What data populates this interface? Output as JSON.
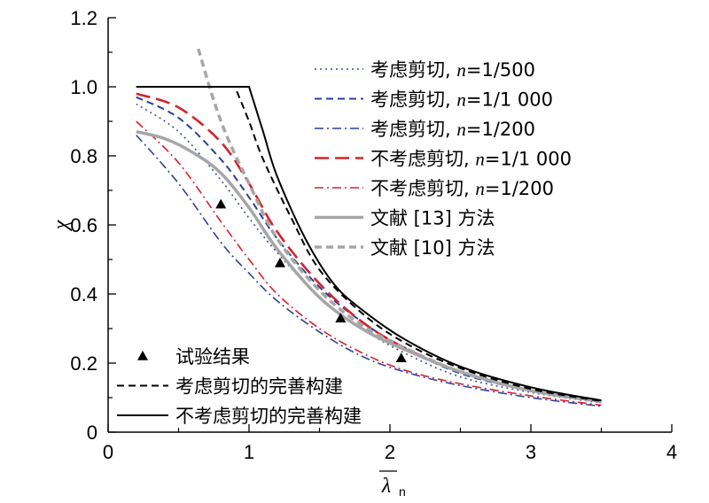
{
  "chart_data": {
    "type": "line",
    "xlabel_symbol": "λ",
    "xlabel_sub": "n",
    "ylabel": "χ",
    "xlim": [
      0,
      4
    ],
    "ylim": [
      0,
      1.2
    ],
    "xticks": [
      "0",
      "1",
      "2",
      "3",
      "4"
    ],
    "yticks": [
      "0",
      "0.2",
      "0.4",
      "0.6",
      "0.8",
      "1.0",
      "1.2"
    ],
    "grid": false,
    "legend_top_right": [
      {
        "series": "s1",
        "text": "考虑剪切, ",
        "var": "n",
        "suffix": "=1/500"
      },
      {
        "series": "s2",
        "text": "考虑剪切, ",
        "var": "n",
        "suffix": "=1/1 000"
      },
      {
        "series": "s3",
        "text": "考虑剪切, ",
        "var": "n",
        "suffix": "=1/200"
      },
      {
        "series": "s4",
        "text": "不考虑剪切, ",
        "var": "n",
        "suffix": "=1/1 000"
      },
      {
        "series": "s5",
        "text": "不考虑剪切, ",
        "var": "n",
        "suffix": "=1/200"
      },
      {
        "series": "s6",
        "text": "文献 [13] 方法",
        "var": "",
        "suffix": ""
      },
      {
        "series": "s7",
        "text": "文献 [10] 方法",
        "var": "",
        "suffix": ""
      }
    ],
    "legend_bottom_left": [
      {
        "series": "test",
        "text": "试验结果"
      },
      {
        "series": "s8",
        "text": "考虑剪切的完善构建"
      },
      {
        "series": "s9",
        "text": "不考虑剪切的完善构建"
      }
    ],
    "series": [
      {
        "id": "s1",
        "color": "#3a4fa0",
        "dash": "dot",
        "width": 1.6,
        "x": [
          0.2,
          0.5,
          0.8,
          1.0,
          1.2,
          1.5,
          1.8,
          2.1,
          2.5,
          3.0,
          3.5
        ],
        "y": [
          0.95,
          0.87,
          0.73,
          0.62,
          0.52,
          0.39,
          0.3,
          0.23,
          0.16,
          0.115,
          0.085
        ]
      },
      {
        "id": "s2",
        "color": "#2b3f9e",
        "dash": "dash",
        "width": 2,
        "x": [
          0.2,
          0.5,
          0.8,
          1.0,
          1.2,
          1.5,
          1.8,
          2.1,
          2.5,
          3.0,
          3.5
        ],
        "y": [
          0.97,
          0.91,
          0.79,
          0.68,
          0.56,
          0.42,
          0.32,
          0.245,
          0.17,
          0.12,
          0.088
        ]
      },
      {
        "id": "s3",
        "color": "#2b3f9e",
        "dash": "dashdot",
        "width": 1.6,
        "x": [
          0.2,
          0.5,
          0.8,
          1.0,
          1.2,
          1.5,
          1.8,
          2.1,
          2.5,
          3.0,
          3.5
        ],
        "y": [
          0.86,
          0.72,
          0.55,
          0.46,
          0.38,
          0.29,
          0.22,
          0.175,
          0.135,
          0.1,
          0.075
        ]
      },
      {
        "id": "s4",
        "color": "#d3232b",
        "dash": "longdash",
        "width": 2.6,
        "x": [
          0.2,
          0.5,
          0.8,
          1.0,
          1.2,
          1.5,
          1.8,
          2.1,
          2.5,
          3.0,
          3.5
        ],
        "y": [
          0.98,
          0.94,
          0.84,
          0.72,
          0.58,
          0.43,
          0.32,
          0.245,
          0.175,
          0.12,
          0.088
        ]
      },
      {
        "id": "s5",
        "color": "#d3232b",
        "dash": "dashdot",
        "width": 1.6,
        "x": [
          0.2,
          0.5,
          0.8,
          1.0,
          1.2,
          1.5,
          1.8,
          2.1,
          2.5,
          3.0,
          3.5
        ],
        "y": [
          0.9,
          0.78,
          0.61,
          0.5,
          0.4,
          0.3,
          0.23,
          0.18,
          0.14,
          0.105,
          0.078
        ]
      },
      {
        "id": "s6",
        "color": "#a6a6a6",
        "dash": "solid",
        "width": 3.5,
        "x": [
          0.2,
          0.4,
          0.6,
          0.8,
          1.0,
          1.2,
          1.5,
          1.8,
          2.1,
          2.5,
          3.0,
          3.5
        ],
        "y": [
          0.87,
          0.85,
          0.81,
          0.75,
          0.65,
          0.53,
          0.39,
          0.3,
          0.24,
          0.175,
          0.12,
          0.09
        ]
      },
      {
        "id": "s7",
        "color": "#a6a6a6",
        "dash": "dash",
        "width": 3.5,
        "x": [
          0.64,
          0.75,
          0.85,
          1.0,
          1.2,
          1.5,
          1.8,
          2.1,
          2.5,
          3.0,
          3.5
        ],
        "y": [
          1.11,
          0.96,
          0.85,
          0.72,
          0.56,
          0.41,
          0.31,
          0.245,
          0.175,
          0.12,
          0.088
        ]
      },
      {
        "id": "s8",
        "color": "#000000",
        "dash": "dash",
        "width": 2,
        "x": [
          0.2,
          0.9,
          1.0,
          1.1,
          1.3,
          1.5,
          1.8,
          2.1,
          2.5,
          3.0,
          3.5
        ],
        "y": [
          1.0,
          1.0,
          0.9,
          0.79,
          0.62,
          0.47,
          0.345,
          0.26,
          0.185,
          0.125,
          0.09
        ]
      },
      {
        "id": "s9",
        "color": "#000000",
        "dash": "solid",
        "width": 2,
        "x": [
          0.2,
          1.0,
          1.1,
          1.2,
          1.4,
          1.6,
          1.8,
          2.1,
          2.5,
          3.0,
          3.5
        ],
        "y": [
          1.0,
          1.0,
          0.87,
          0.74,
          0.56,
          0.43,
          0.355,
          0.27,
          0.19,
          0.13,
          0.092
        ]
      }
    ],
    "test_points": {
      "color": "#000000",
      "x": [
        0.8,
        1.22,
        1.65,
        2.08
      ],
      "y": [
        0.66,
        0.49,
        0.33,
        0.215
      ]
    }
  }
}
